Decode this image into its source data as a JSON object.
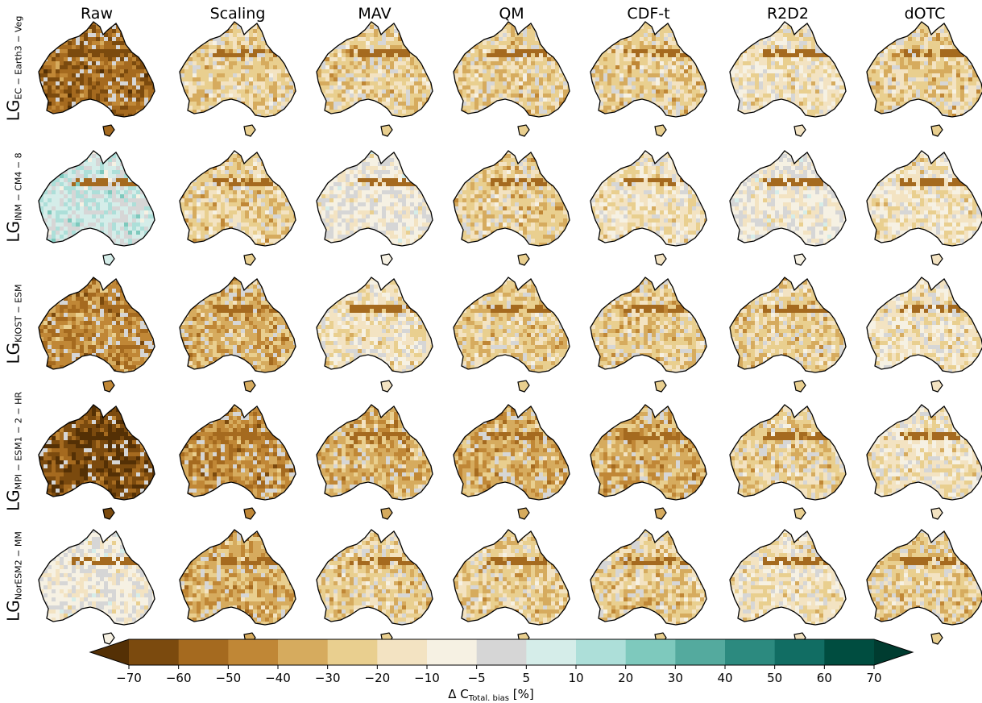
{
  "chart_data": {
    "type": "heatmap",
    "columns": [
      "Raw",
      "Scaling",
      "MAV",
      "QM",
      "CDF-t",
      "R2D2",
      "dOTC"
    ],
    "rows": [
      {
        "base": "LG",
        "sub": "EC − Earth3 − Veg"
      },
      {
        "base": "LG",
        "sub": "INM − CM4 − 8"
      },
      {
        "base": "LG",
        "sub": "KIOST − ESM"
      },
      {
        "base": "LG",
        "sub": "MPI − ESM1 − 2 − HR"
      },
      {
        "base": "LG",
        "sub": "NorESM2 − MM"
      }
    ],
    "panels_dominant_class": [
      [
        2,
        5,
        5,
        5,
        5,
        6,
        5
      ],
      [
        9,
        5,
        7,
        5,
        6,
        7,
        6
      ],
      [
        3,
        4,
        6,
        5,
        5,
        5,
        6
      ],
      [
        1,
        3,
        4,
        4,
        4,
        5,
        6
      ],
      [
        7,
        4,
        5,
        5,
        5,
        6,
        5
      ]
    ],
    "colorbar": {
      "bounds": [
        -70,
        -60,
        -50,
        -40,
        -30,
        -20,
        -10,
        -5,
        5,
        10,
        20,
        30,
        40,
        50,
        60,
        70
      ],
      "tick_labels": [
        "−70",
        "−60",
        "−50",
        "−40",
        "−30",
        "−20",
        "−10",
        "−5",
        "5",
        "10",
        "20",
        "30",
        "40",
        "50",
        "60",
        "70"
      ],
      "colors": [
        "#543005",
        "#7b4a0e",
        "#a56a1f",
        "#c08736",
        "#d6ab5e",
        "#e9cf8f",
        "#f3e3c2",
        "#f6f1e3",
        "#d6d6d6",
        "#d5ede9",
        "#addfd9",
        "#7ec9bd",
        "#54aa9e",
        "#2c8a7f",
        "#116d63",
        "#004d40",
        "#003c30"
      ],
      "extend": "both",
      "label_base": "Δ C",
      "label_sub": "Total. bias",
      "label_unit": "[%]"
    }
  }
}
